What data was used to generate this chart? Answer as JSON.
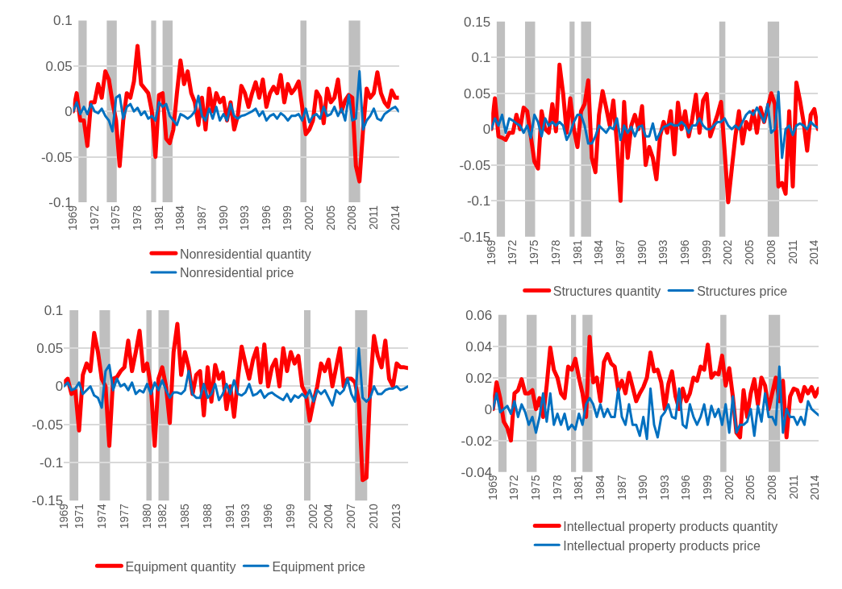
{
  "chart_data": [
    {
      "type": "line",
      "x": [
        1969,
        1969.5,
        1970,
        1970.5,
        1971,
        1971.5,
        1972,
        1972.5,
        1973,
        1973.5,
        1974,
        1974.5,
        1975,
        1975.5,
        1976,
        1976.5,
        1977,
        1977.5,
        1978,
        1978.5,
        1979,
        1979.5,
        1980,
        1980.5,
        1981,
        1981.5,
        1982,
        1982.5,
        1983,
        1983.5,
        1984,
        1984.5,
        1985,
        1985.5,
        1986,
        1986.5,
        1987,
        1987.5,
        1988,
        1988.5,
        1989,
        1989.5,
        1990,
        1990.5,
        1991,
        1991.5,
        1992,
        1992.5,
        1993,
        1993.5,
        1994,
        1994.5,
        1995,
        1995.5,
        1996,
        1996.5,
        1997,
        1997.5,
        1998,
        1998.5,
        1999,
        1999.5,
        2000,
        2000.5,
        2001,
        2001.5,
        2002,
        2002.5,
        2003,
        2003.5,
        2004,
        2004.5,
        2005,
        2005.5,
        2006,
        2006.5,
        2007,
        2007.5,
        2008,
        2008.5,
        2009,
        2009.5,
        2010,
        2010.5,
        2011,
        2011.5,
        2012,
        2012.5,
        2013,
        2013.5,
        2014,
        2014.5
      ],
      "series": [
        {
          "name": "Nonresidential quantity",
          "color": "#ff0000",
          "values": [
            0,
            0.02,
            -0.01,
            -0.01,
            -0.038,
            0.01,
            0.01,
            0.03,
            0.015,
            0.044,
            0.035,
            0.01,
            -0.01,
            -0.06,
            -0.01,
            0.02,
            0.015,
            0.033,
            0.072,
            0.03,
            0.025,
            0.02,
            0.0,
            -0.05,
            0.018,
            0.02,
            -0.03,
            -0.035,
            -0.02,
            0.02,
            0.056,
            0.03,
            0.044,
            0.02,
            0.01,
            -0.015,
            0.015,
            -0.02,
            0.025,
            0.0,
            0.02,
            0.01,
            0.015,
            -0.01,
            0.01,
            -0.02,
            -0.005,
            0.028,
            0.02,
            0.005,
            0.02,
            0.032,
            0.015,
            0.035,
            0.005,
            0.02,
            0.027,
            0.02,
            0.04,
            0.01,
            0.03,
            0.02,
            0.025,
            0.033,
            0.005,
            -0.025,
            -0.02,
            -0.01,
            0.022,
            0.015,
            -0.013,
            0.025,
            0.01,
            0.015,
            0.035,
            0.0,
            0.012,
            0.018,
            0.015,
            -0.06,
            -0.077,
            -0.02,
            0.025,
            0.015,
            0.02,
            0.043,
            0.02,
            0.01,
            0.005,
            0.023,
            0.015,
            0.015
          ]
        },
        {
          "name": "Nonresidential price",
          "color": "#0070c0",
          "values": [
            0,
            0.01,
            -0.003,
            0.005,
            -0.003,
            0.008,
            0.0,
            -0.002,
            0.003,
            -0.005,
            -0.01,
            -0.022,
            0.015,
            0.018,
            -0.008,
            0.005,
            0.008,
            0.0,
            0.004,
            -0.004,
            0.0,
            -0.008,
            -0.005,
            -0.01,
            0.01,
            0.005,
            0.008,
            -0.005,
            -0.01,
            -0.015,
            -0.003,
            -0.005,
            -0.008,
            -0.005,
            0.0,
            0.017,
            -0.005,
            -0.01,
            0.003,
            -0.008,
            0.005,
            -0.01,
            -0.003,
            -0.01,
            0.008,
            -0.005,
            -0.008,
            -0.005,
            -0.004,
            -0.002,
            0.0,
            0.003,
            -0.005,
            0.0,
            -0.01,
            -0.005,
            -0.003,
            -0.008,
            -0.002,
            -0.005,
            -0.01,
            -0.005,
            -0.005,
            -0.003,
            -0.01,
            0.003,
            -0.012,
            -0.005,
            -0.003,
            -0.008,
            0.005,
            -0.005,
            -0.003,
            0.005,
            -0.005,
            0.003,
            -0.01,
            0.018,
            -0.01,
            -0.008,
            0.044,
            -0.02,
            -0.01,
            -0.005,
            0.003,
            -0.008,
            -0.01,
            -0.003,
            0.0,
            0.003,
            0.005,
            0.0
          ]
        }
      ],
      "xlim": [
        1969,
        2014.5
      ],
      "xticks": [
        1969,
        1972,
        1975,
        1978,
        1981,
        1984,
        1987,
        1990,
        1993,
        1996,
        1999,
        2002,
        2005,
        2008,
        2011,
        2014
      ],
      "ylim": [
        -0.1,
        0.1
      ],
      "yticks": [
        -0.1,
        -0.05,
        0,
        0.05,
        0.1
      ],
      "grid": "y",
      "legend": "bottom",
      "bands": [
        {
          "axis": "x",
          "from": 1969.75,
          "to": 1970.9,
          "color": "#bfbfbf"
        },
        {
          "axis": "x",
          "from": 1973.7,
          "to": 1975.1,
          "color": "#bfbfbf"
        },
        {
          "axis": "x",
          "from": 1979.9,
          "to": 1980.6,
          "color": "#bfbfbf"
        },
        {
          "axis": "x",
          "from": 1981.5,
          "to": 1982.9,
          "color": "#bfbfbf"
        },
        {
          "axis": "x",
          "from": 2000.75,
          "to": 2001.6,
          "color": "#bfbfbf"
        },
        {
          "axis": "x",
          "from": 2007.5,
          "to": 2009.1,
          "color": "#bfbfbf"
        }
      ]
    },
    {
      "type": "line",
      "x": [
        1969,
        1969.5,
        1970,
        1970.5,
        1971,
        1971.5,
        1972,
        1972.5,
        1973,
        1973.5,
        1974,
        1974.5,
        1975,
        1975.5,
        1976,
        1976.5,
        1977,
        1977.5,
        1978,
        1978.5,
        1979,
        1979.5,
        1980,
        1980.5,
        1981,
        1981.5,
        1982,
        1982.5,
        1983,
        1983.5,
        1984,
        1984.5,
        1985,
        1985.5,
        1986,
        1986.5,
        1987,
        1987.5,
        1988,
        1988.5,
        1989,
        1989.5,
        1990,
        1990.5,
        1991,
        1991.5,
        1992,
        1992.5,
        1993,
        1993.5,
        1994,
        1994.5,
        1995,
        1995.5,
        1996,
        1996.5,
        1997,
        1997.5,
        1998,
        1998.5,
        1999,
        1999.5,
        2000,
        2000.5,
        2001,
        2001.5,
        2002,
        2002.5,
        2003,
        2003.5,
        2004,
        2004.5,
        2005,
        2005.5,
        2006,
        2006.5,
        2007,
        2007.5,
        2008,
        2008.5,
        2009,
        2009.5,
        2010,
        2010.5,
        2011,
        2011.5,
        2012,
        2012.5,
        2013,
        2013.5,
        2014,
        2014.5
      ],
      "series": [
        {
          "name": "Structures quantity",
          "color": "#ff0000",
          "values": [
            0.0,
            0.043,
            -0.01,
            -0.012,
            -0.015,
            -0.005,
            -0.005,
            0.02,
            0.0,
            0.03,
            0.025,
            -0.01,
            -0.045,
            -0.055,
            0.025,
            0.0,
            -0.005,
            0.035,
            -0.003,
            0.09,
            0.05,
            -0.005,
            0.043,
            0.0,
            -0.025,
            0.025,
            0.035,
            0.068,
            -0.04,
            -0.06,
            0.02,
            0.053,
            0.03,
            0.005,
            0.04,
            -0.02,
            -0.1,
            0.038,
            -0.04,
            0.005,
            0.02,
            0.0,
            0.032,
            -0.05,
            -0.025,
            -0.04,
            -0.07,
            -0.01,
            0.01,
            -0.005,
            0.025,
            -0.035,
            0.037,
            0.0,
            0.025,
            -0.01,
            0.015,
            0.048,
            -0.005,
            0.04,
            0.049,
            -0.01,
            0.005,
            0.02,
            0.038,
            -0.03,
            -0.102,
            -0.055,
            -0.01,
            0.025,
            -0.02,
            0.01,
            0.0,
            0.025,
            -0.005,
            0.03,
            0.01,
            0.03,
            0.05,
            0.035,
            -0.08,
            -0.075,
            -0.09,
            0.025,
            -0.08,
            0.065,
            0.04,
            0.01,
            -0.03,
            0.02,
            0.028,
            0.0
          ]
        },
        {
          "name": "Structures price",
          "color": "#0070c0",
          "values": [
            0,
            0.015,
            0.005,
            0.02,
            -0.005,
            0.015,
            0.012,
            0.008,
            0.005,
            -0.005,
            0.005,
            -0.012,
            0.02,
            0.01,
            -0.01,
            0.015,
            0.005,
            0.01,
            0.005,
            0.01,
            0.005,
            -0.015,
            -0.005,
            0.01,
            0.02,
            0.02,
            0.005,
            -0.02,
            -0.02,
            -0.01,
            0.005,
            0.0,
            -0.005,
            0.003,
            0.0,
            0.015,
            -0.015,
            0.005,
            -0.005,
            0.003,
            -0.01,
            0.003,
            0.005,
            -0.01,
            -0.01,
            0.008,
            -0.015,
            -0.005,
            0.003,
            0.005,
            0.008,
            0.005,
            0.005,
            0.01,
            0.005,
            -0.005,
            0.005,
            0.005,
            0.015,
            0.005,
            0.0,
            0.0,
            0.005,
            0.01,
            0.01,
            0.015,
            0.005,
            0.0,
            0.005,
            0.0,
            0.01,
            0.02,
            0.025,
            0.02,
            0.03,
            0.02,
            0.01,
            0.035,
            -0.005,
            0.0,
            0.052,
            -0.04,
            0.0,
            0.005,
            -0.008,
            0.005,
            0.008,
            0.005,
            0.0,
            0.01,
            0.005,
            0.002
          ]
        }
      ],
      "xlim": [
        1969,
        2014.5
      ],
      "xticks": [
        1969,
        1972,
        1975,
        1978,
        1981,
        1984,
        1987,
        1990,
        1993,
        1996,
        1999,
        2002,
        2005,
        2008,
        2011,
        2014
      ],
      "ylim": [
        -0.15,
        0.15
      ],
      "yticks": [
        -0.15,
        -0.1,
        -0.05,
        0,
        0.05,
        0.1,
        0.15
      ],
      "grid": "y",
      "legend": "bottom",
      "bands": [
        {
          "axis": "x",
          "from": 1969.75,
          "to": 1970.9,
          "color": "#bfbfbf"
        },
        {
          "axis": "x",
          "from": 1973.7,
          "to": 1975.1,
          "color": "#bfbfbf"
        },
        {
          "axis": "x",
          "from": 1979.9,
          "to": 1980.6,
          "color": "#bfbfbf"
        },
        {
          "axis": "x",
          "from": 1981.5,
          "to": 1982.9,
          "color": "#bfbfbf"
        },
        {
          "axis": "x",
          "from": 2000.75,
          "to": 2001.6,
          "color": "#bfbfbf"
        },
        {
          "axis": "x",
          "from": 2007.5,
          "to": 2009.1,
          "color": "#bfbfbf"
        }
      ]
    },
    {
      "type": "line",
      "x": [
        1969,
        1969.5,
        1970,
        1970.5,
        1971,
        1971.5,
        1972,
        1972.5,
        1973,
        1973.5,
        1974,
        1974.5,
        1975,
        1975.5,
        1976,
        1976.5,
        1977,
        1977.5,
        1978,
        1978.5,
        1979,
        1979.5,
        1980,
        1980.5,
        1981,
        1981.5,
        1982,
        1982.5,
        1983,
        1983.5,
        1984,
        1984.5,
        1985,
        1985.5,
        1986,
        1986.5,
        1987,
        1987.5,
        1988,
        1988.5,
        1989,
        1989.5,
        1990,
        1990.5,
        1991,
        1991.5,
        1992,
        1992.5,
        1993,
        1993.5,
        1994,
        1994.5,
        1995,
        1995.5,
        1996,
        1996.5,
        1997,
        1997.5,
        1998,
        1998.5,
        1999,
        1999.5,
        2000,
        2000.5,
        2001,
        2001.5,
        2002,
        2002.5,
        2003,
        2003.5,
        2004,
        2004.5,
        2005,
        2005.5,
        2006,
        2006.5,
        2007,
        2007.5,
        2008,
        2008.5,
        2009,
        2009.5,
        2010,
        2010.5,
        2011,
        2011.5,
        2012,
        2012.5,
        2013,
        2013.5,
        2014,
        2014.5
      ],
      "series": [
        {
          "name": "Equipment quantity",
          "color": "#ff0000",
          "values": [
            0.005,
            0.01,
            -0.01,
            -0.005,
            -0.058,
            0.015,
            0.03,
            0.02,
            0.07,
            0.045,
            0.01,
            0.0,
            -0.078,
            0.01,
            0.012,
            0.02,
            0.025,
            0.06,
            0.02,
            0.045,
            0.073,
            0.02,
            0.03,
            0.0,
            -0.078,
            0.01,
            0.025,
            0.0,
            -0.048,
            0.045,
            0.082,
            0.015,
            0.045,
            0.025,
            -0.01,
            0.015,
            0.02,
            -0.038,
            0.025,
            -0.02,
            0.028,
            0.01,
            0.018,
            -0.03,
            0.0,
            -0.04,
            0.01,
            0.052,
            0.03,
            0.01,
            0.035,
            0.05,
            0.005,
            0.055,
            0.0,
            0.025,
            0.035,
            0.0,
            0.05,
            0.02,
            0.045,
            0.03,
            0.04,
            0.0,
            -0.01,
            -0.045,
            -0.02,
            0.0,
            0.03,
            0.02,
            0.035,
            0.0,
            0.025,
            0.05,
            0.0,
            0.01,
            0.01,
            0.005,
            -0.02,
            -0.123,
            -0.12,
            0.0,
            0.066,
            0.04,
            0.025,
            0.06,
            0.01,
            0.0,
            0.03,
            0.025,
            0.025,
            0.024
          ]
        },
        {
          "name": "Equipment price",
          "color": "#0070c0",
          "values": [
            0,
            0.005,
            -0.005,
            -0.003,
            0.005,
            -0.01,
            -0.005,
            0.0,
            -0.012,
            -0.015,
            -0.028,
            0.02,
            0.028,
            -0.005,
            0.01,
            0.0,
            0.003,
            -0.005,
            0.005,
            -0.01,
            -0.005,
            -0.008,
            0.003,
            -0.01,
            0.005,
            -0.005,
            0.008,
            -0.005,
            -0.015,
            -0.008,
            -0.008,
            -0.01,
            -0.005,
            0.02,
            -0.01,
            -0.015,
            -0.015,
            0.003,
            -0.015,
            -0.01,
            0.003,
            -0.018,
            -0.01,
            0.003,
            -0.01,
            0.008,
            -0.01,
            -0.012,
            -0.008,
            0.003,
            -0.012,
            -0.01,
            -0.005,
            -0.015,
            -0.01,
            -0.008,
            -0.012,
            -0.015,
            -0.018,
            -0.01,
            -0.02,
            -0.012,
            -0.015,
            -0.01,
            -0.015,
            -0.005,
            -0.02,
            -0.005,
            -0.01,
            -0.005,
            -0.015,
            -0.025,
            -0.005,
            -0.01,
            -0.005,
            0.01,
            -0.01,
            -0.02,
            0.05,
            -0.015,
            -0.02,
            -0.015,
            0.0,
            -0.01,
            -0.01,
            -0.005,
            -0.003,
            -0.003,
            0.0,
            -0.005,
            -0.003,
            0.0
          ]
        }
      ],
      "xlim": [
        1969,
        2014.5
      ],
      "xticks": [
        1969,
        1971,
        1974,
        1977,
        1980,
        1982,
        1985,
        1988,
        1991,
        1993,
        1996,
        1999,
        2002,
        2004,
        2007,
        2010,
        2013
      ],
      "ylim": [
        -0.15,
        0.1
      ],
      "yticks": [
        -0.15,
        -0.1,
        -0.05,
        0,
        0.05,
        0.1
      ],
      "grid": "y",
      "legend": "bottom",
      "bands": [
        {
          "axis": "x",
          "from": 1969.75,
          "to": 1970.9,
          "color": "#bfbfbf"
        },
        {
          "axis": "x",
          "from": 1973.7,
          "to": 1975.1,
          "color": "#bfbfbf"
        },
        {
          "axis": "x",
          "from": 1979.9,
          "to": 1980.6,
          "color": "#bfbfbf"
        },
        {
          "axis": "x",
          "from": 1981.5,
          "to": 1982.9,
          "color": "#bfbfbf"
        },
        {
          "axis": "x",
          "from": 2000.75,
          "to": 2001.6,
          "color": "#bfbfbf"
        },
        {
          "axis": "x",
          "from": 2007.5,
          "to": 2009.1,
          "color": "#bfbfbf"
        }
      ]
    },
    {
      "type": "line",
      "x": [
        1969,
        1969.5,
        1970,
        1970.5,
        1971,
        1971.5,
        1972,
        1972.5,
        1973,
        1973.5,
        1974,
        1974.5,
        1975,
        1975.5,
        1976,
        1976.5,
        1977,
        1977.5,
        1978,
        1978.5,
        1979,
        1979.5,
        1980,
        1980.5,
        1981,
        1981.5,
        1982,
        1982.5,
        1983,
        1983.5,
        1984,
        1984.5,
        1985,
        1985.5,
        1986,
        1986.5,
        1987,
        1987.5,
        1988,
        1988.5,
        1989,
        1989.5,
        1990,
        1990.5,
        1991,
        1991.5,
        1992,
        1992.5,
        1993,
        1993.5,
        1994,
        1994.5,
        1995,
        1995.5,
        1996,
        1996.5,
        1997,
        1997.5,
        1998,
        1998.5,
        1999,
        1999.5,
        2000,
        2000.5,
        2001,
        2001.5,
        2002,
        2002.5,
        2003,
        2003.5,
        2004,
        2004.5,
        2005,
        2005.5,
        2006,
        2006.5,
        2007,
        2007.5,
        2008,
        2008.5,
        2009,
        2009.5,
        2010,
        2010.5,
        2011,
        2011.5,
        2012,
        2012.5,
        2013,
        2013.5,
        2014,
        2014.5
      ],
      "series": [
        {
          "name": "Intellectual property products quantity",
          "color": "#ff0000",
          "values": [
            0.0,
            0.017,
            0.007,
            -0.008,
            -0.012,
            -0.02,
            0.01,
            0.012,
            0.019,
            0.01,
            0.01,
            0.012,
            0.0,
            0.007,
            -0.005,
            0.015,
            0.039,
            0.025,
            0.02,
            0.01,
            0.007,
            0.027,
            0.025,
            0.032,
            0.02,
            0.01,
            -0.005,
            0.046,
            0.017,
            0.02,
            0.005,
            0.03,
            0.035,
            0.029,
            0.027,
            0.012,
            0.018,
            0.01,
            0.023,
            0.014,
            0.005,
            0.01,
            0.014,
            0.02,
            0.036,
            0.024,
            0.025,
            0.017,
            0.0,
            0.016,
            0.024,
            0.008,
            0.0,
            0.013,
            0.005,
            0.01,
            0.02,
            0.018,
            0.027,
            0.025,
            0.041,
            0.02,
            0.023,
            0.022,
            0.034,
            0.015,
            0.026,
            0.008,
            -0.015,
            -0.018,
            0.012,
            -0.005,
            0.01,
            0.019,
            0.003,
            0.02,
            0.015,
            0.0,
            0.01,
            0.02,
            0.005,
            0.018,
            -0.018,
            0.008,
            0.013,
            0.012,
            0.005,
            0.014,
            0.01,
            0.014,
            0.008,
            0.013
          ]
        },
        {
          "name": "Intellectual property products price",
          "color": "#0070c0",
          "values": [
            0.0,
            0.01,
            -0.002,
            0.0,
            0.002,
            -0.003,
            0.005,
            -0.005,
            0.003,
            -0.002,
            -0.01,
            -0.005,
            -0.015,
            -0.005,
            0.01,
            -0.008,
            0.01,
            -0.01,
            -0.003,
            -0.01,
            -0.003,
            -0.013,
            -0.01,
            -0.013,
            -0.003,
            -0.01,
            0.003,
            0.007,
            0.003,
            -0.005,
            0.003,
            -0.005,
            0.0,
            -0.005,
            -0.005,
            0.013,
            -0.005,
            -0.01,
            0.003,
            -0.01,
            -0.01,
            -0.017,
            -0.005,
            -0.019,
            0.013,
            -0.01,
            -0.018,
            -0.005,
            -0.002,
            0.003,
            -0.005,
            -0.006,
            0.013,
            -0.01,
            -0.012,
            0.003,
            -0.005,
            -0.01,
            -0.005,
            0.003,
            -0.01,
            0.002,
            -0.005,
            0.0,
            -0.01,
            0.003,
            -0.015,
            0.008,
            -0.015,
            -0.01,
            -0.01,
            -0.008,
            0.0,
            -0.017,
            0.002,
            -0.008,
            0.01,
            -0.005,
            -0.005,
            -0.01,
            0.027,
            -0.015,
            0.0,
            -0.005,
            -0.005,
            -0.01,
            -0.005,
            -0.01,
            0.005,
            0.0,
            -0.002,
            -0.004
          ]
        }
      ],
      "xlim": [
        1969,
        2014.5
      ],
      "xticks": [
        1969,
        1972,
        1975,
        1978,
        1981,
        1984,
        1987,
        1990,
        1993,
        1996,
        1999,
        2002,
        2005,
        2008,
        2011,
        2014
      ],
      "ylim": [
        -0.04,
        0.06
      ],
      "yticks": [
        -0.04,
        -0.02,
        0,
        0.02,
        0.04,
        0.06
      ],
      "grid": "y",
      "legend": "bottom",
      "bands": [
        {
          "axis": "x",
          "from": 1969.75,
          "to": 1970.9,
          "color": "#bfbfbf"
        },
        {
          "axis": "x",
          "from": 1973.7,
          "to": 1975.1,
          "color": "#bfbfbf"
        },
        {
          "axis": "x",
          "from": 1979.9,
          "to": 1980.6,
          "color": "#bfbfbf"
        },
        {
          "axis": "x",
          "from": 1981.5,
          "to": 1982.9,
          "color": "#bfbfbf"
        },
        {
          "axis": "x",
          "from": 2000.75,
          "to": 2001.6,
          "color": "#bfbfbf"
        },
        {
          "axis": "x",
          "from": 2007.5,
          "to": 2009.1,
          "color": "#bfbfbf"
        }
      ]
    }
  ]
}
